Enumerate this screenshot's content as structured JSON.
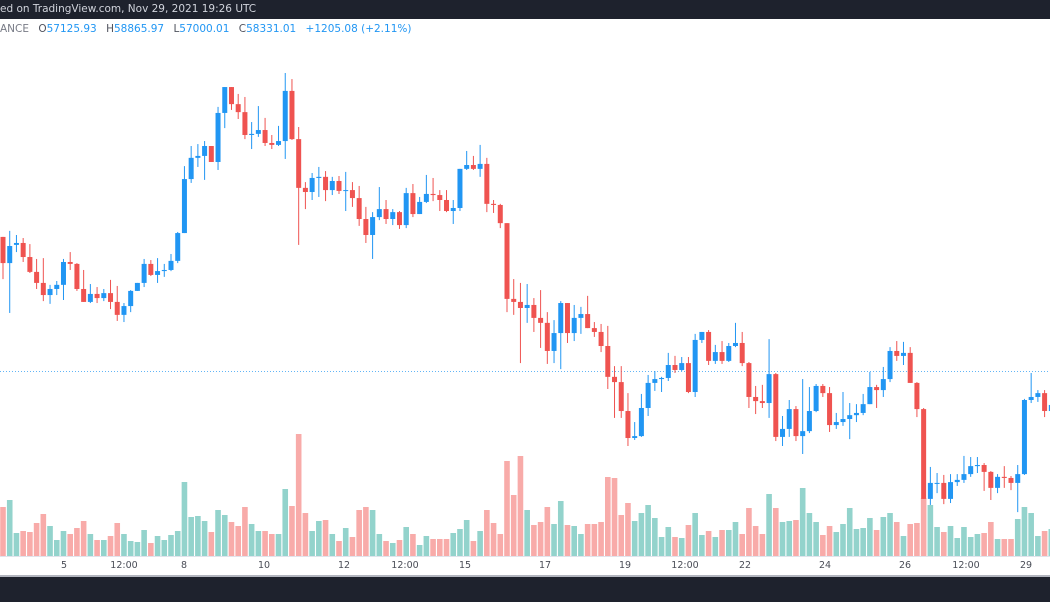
{
  "header": {
    "published_text": "ed on TradingView.com, Nov 29, 2021 19:26 UTC"
  },
  "legend": {
    "symbol_fragment": "ANCE",
    "open_label": "O",
    "open": "57125.93",
    "high_label": "H",
    "high": "58865.97",
    "low_label": "L",
    "low": "57000.01",
    "close_label": "C",
    "close": "58331.01",
    "change": "+1205.08 (+2.11%)"
  },
  "colors": {
    "up": "#2196f3",
    "down": "#ef5350",
    "volume_up": "#93d3cc",
    "volume_down": "#f8aba9",
    "last_price_line": "#2196f3",
    "bar_background": "#1e222d"
  },
  "x_axis": {
    "labels": [
      "5",
      "12:00",
      "8",
      "10",
      "12",
      "12:00",
      "15",
      "17",
      "19",
      "12:00",
      "22",
      "24",
      "26",
      "12:00",
      "29"
    ]
  },
  "chart_data": {
    "type": "candlestick",
    "interval": "4h",
    "last_price": 58331.01,
    "x_tick_labels": [
      "5",
      "12:00",
      "8",
      "10",
      "12",
      "12:00",
      "15",
      "17",
      "19",
      "12:00",
      "22",
      "24",
      "26",
      "12:00",
      "29"
    ],
    "ohlc": [
      [
        63200,
        63200,
        61670,
        62250
      ],
      [
        62250,
        63420,
        60440,
        62870
      ],
      [
        62910,
        63270,
        62650,
        62980
      ],
      [
        62980,
        63160,
        62290,
        62470
      ],
      [
        62470,
        62940,
        61890,
        61930
      ],
      [
        61930,
        62400,
        61310,
        61530
      ],
      [
        61530,
        62430,
        60870,
        61090
      ],
      [
        61090,
        61460,
        60770,
        61310
      ],
      [
        61310,
        61600,
        61090,
        61460
      ],
      [
        61460,
        62400,
        60910,
        62290
      ],
      [
        62290,
        62650,
        62000,
        62220
      ],
      [
        62220,
        62250,
        61240,
        61310
      ],
      [
        61310,
        62000,
        60840,
        60840
      ],
      [
        60840,
        61490,
        60800,
        61130
      ],
      [
        61130,
        61380,
        60800,
        60980
      ],
      [
        60980,
        61310,
        60870,
        61160
      ],
      [
        61160,
        61640,
        60580,
        60840
      ],
      [
        60840,
        61420,
        60150,
        60370
      ],
      [
        60370,
        60800,
        60110,
        60690
      ],
      [
        60690,
        61270,
        60470,
        61240
      ],
      [
        61240,
        61530,
        61240,
        61530
      ],
      [
        61530,
        62400,
        61380,
        62220
      ],
      [
        62220,
        62360,
        61780,
        61820
      ],
      [
        61820,
        62430,
        61530,
        61960
      ],
      [
        61960,
        62220,
        61750,
        62000
      ],
      [
        62000,
        62580,
        61960,
        62330
      ],
      [
        62330,
        63380,
        62250,
        63340
      ],
      [
        63340,
        65770,
        63340,
        65300
      ],
      [
        65300,
        66500,
        65160,
        66070
      ],
      [
        66070,
        66570,
        65740,
        66140
      ],
      [
        66140,
        66680,
        65270,
        66500
      ],
      [
        66500,
        66500,
        65920,
        65920
      ],
      [
        65920,
        67920,
        65630,
        67700
      ],
      [
        67700,
        68640,
        67150,
        68640
      ],
      [
        68640,
        68640,
        67810,
        68020
      ],
      [
        68020,
        68390,
        67480,
        67730
      ],
      [
        67730,
        68280,
        66750,
        66900
      ],
      [
        66900,
        67370,
        66390,
        66940
      ],
      [
        66940,
        67950,
        66830,
        67080
      ],
      [
        67080,
        67520,
        66500,
        66610
      ],
      [
        66610,
        66900,
        66390,
        66540
      ],
      [
        66540,
        67230,
        66500,
        66680
      ],
      [
        66680,
        69150,
        66030,
        68500
      ],
      [
        68500,
        68930,
        66720,
        66750
      ],
      [
        66750,
        67190,
        62910,
        64980
      ],
      [
        64980,
        65190,
        64210,
        64830
      ],
      [
        64830,
        65520,
        64540,
        65340
      ],
      [
        65340,
        65740,
        64650,
        65380
      ],
      [
        65380,
        65590,
        64500,
        64900
      ],
      [
        64900,
        65380,
        64720,
        65230
      ],
      [
        65230,
        65410,
        64760,
        64870
      ],
      [
        64870,
        65560,
        64140,
        64900
      ],
      [
        64900,
        65190,
        64290,
        64610
      ],
      [
        64610,
        65050,
        63600,
        63850
      ],
      [
        63850,
        64290,
        62980,
        63270
      ],
      [
        63270,
        64100,
        62400,
        63920
      ],
      [
        63920,
        65010,
        63810,
        64210
      ],
      [
        64210,
        64540,
        63670,
        63850
      ],
      [
        63850,
        64210,
        63630,
        64100
      ],
      [
        64100,
        64140,
        63490,
        63630
      ],
      [
        63630,
        64980,
        63520,
        64790
      ],
      [
        64790,
        65120,
        63920,
        64030
      ],
      [
        64030,
        64650,
        64030,
        64470
      ],
      [
        64470,
        65450,
        64430,
        64760
      ],
      [
        64760,
        65340,
        64500,
        64720
      ],
      [
        64720,
        64900,
        64140,
        64540
      ],
      [
        64540,
        64900,
        64100,
        64140
      ],
      [
        64140,
        64540,
        63670,
        64250
      ],
      [
        64250,
        65670,
        64140,
        65670
      ],
      [
        65670,
        66320,
        65630,
        65810
      ],
      [
        65810,
        66140,
        65630,
        65670
      ],
      [
        65670,
        66540,
        65380,
        65850
      ],
      [
        65850,
        66070,
        64100,
        64400
      ],
      [
        64400,
        64540,
        64070,
        64360
      ],
      [
        64360,
        64400,
        63520,
        63700
      ],
      [
        63700,
        63700,
        60470,
        60950
      ],
      [
        60950,
        61670,
        60370,
        60840
      ],
      [
        60840,
        61530,
        58620,
        60620
      ],
      [
        60620,
        61490,
        60080,
        60730
      ],
      [
        60730,
        60980,
        59750,
        60260
      ],
      [
        60260,
        61270,
        59170,
        60080
      ],
      [
        60080,
        60470,
        58590,
        59060
      ],
      [
        59060,
        60180,
        58620,
        59710
      ],
      [
        59710,
        60870,
        58400,
        60800
      ],
      [
        60800,
        60800,
        59350,
        59710
      ],
      [
        59710,
        60730,
        59420,
        60260
      ],
      [
        60260,
        60660,
        59680,
        60400
      ],
      [
        60400,
        61060,
        59890,
        59890
      ],
      [
        59890,
        60110,
        59570,
        59750
      ],
      [
        59750,
        60040,
        59020,
        59240
      ],
      [
        59240,
        59970,
        57680,
        58120
      ],
      [
        58120,
        58510,
        56630,
        57930
      ],
      [
        57930,
        58510,
        56630,
        56880
      ],
      [
        56880,
        57530,
        55610,
        55900
      ],
      [
        55900,
        56480,
        55830,
        55970
      ],
      [
        55970,
        57500,
        55940,
        56990
      ],
      [
        56990,
        58190,
        56700,
        57900
      ],
      [
        57900,
        58330,
        57610,
        58040
      ],
      [
        58040,
        58120,
        57570,
        58080
      ],
      [
        58080,
        58990,
        57970,
        58550
      ],
      [
        58550,
        58880,
        58260,
        58370
      ],
      [
        58370,
        58840,
        58330,
        58620
      ],
      [
        58620,
        58840,
        57530,
        57570
      ],
      [
        57570,
        59680,
        57390,
        59460
      ],
      [
        59460,
        59750,
        59350,
        59750
      ],
      [
        59750,
        59820,
        58550,
        58700
      ],
      [
        58700,
        59280,
        58590,
        59020
      ],
      [
        59020,
        59420,
        58590,
        58700
      ],
      [
        58700,
        59350,
        58660,
        59240
      ],
      [
        59240,
        60080,
        59200,
        59350
      ],
      [
        59350,
        59750,
        58510,
        58620
      ],
      [
        58620,
        58660,
        56990,
        57390
      ],
      [
        57390,
        57790,
        56770,
        57240
      ],
      [
        57240,
        57830,
        56990,
        57170
      ],
      [
        57170,
        59490,
        56630,
        58220
      ],
      [
        58220,
        58260,
        55790,
        55940
      ],
      [
        55940,
        56700,
        55610,
        56230
      ],
      [
        56230,
        57280,
        55940,
        56950
      ],
      [
        56950,
        57060,
        55790,
        55970
      ],
      [
        55970,
        58040,
        55320,
        56150
      ],
      [
        56150,
        57750,
        56080,
        56880
      ],
      [
        56880,
        57860,
        56840,
        57790
      ],
      [
        57790,
        57860,
        57390,
        57530
      ],
      [
        57530,
        57750,
        56120,
        56370
      ],
      [
        56370,
        56810,
        56230,
        56480
      ],
      [
        56480,
        57570,
        56340,
        56590
      ],
      [
        56590,
        57170,
        55860,
        56730
      ],
      [
        56730,
        57130,
        56480,
        56810
      ],
      [
        56810,
        57500,
        56730,
        57130
      ],
      [
        57130,
        58300,
        57130,
        57750
      ],
      [
        57750,
        57830,
        56990,
        57640
      ],
      [
        57640,
        58480,
        57390,
        58040
      ],
      [
        58040,
        59200,
        57930,
        59060
      ],
      [
        59060,
        59420,
        58700,
        58880
      ],
      [
        58880,
        59390,
        58550,
        58990
      ],
      [
        58990,
        59200,
        57900,
        57900
      ],
      [
        57900,
        57930,
        56660,
        56950
      ],
      [
        56950,
        56990,
        53690,
        53690
      ],
      [
        53690,
        54850,
        53470,
        54270
      ],
      [
        54270,
        54630,
        53900,
        54270
      ],
      [
        54270,
        54560,
        53500,
        53690
      ],
      [
        53690,
        54590,
        53540,
        54300
      ],
      [
        54300,
        54590,
        54160,
        54380
      ],
      [
        54380,
        55250,
        54270,
        54590
      ],
      [
        54590,
        55210,
        54490,
        54880
      ],
      [
        54880,
        55210,
        54630,
        54920
      ],
      [
        54920,
        54990,
        53980,
        54670
      ],
      [
        54670,
        54700,
        53650,
        54090
      ],
      [
        54090,
        54590,
        53900,
        54490
      ],
      [
        54490,
        54880,
        54090,
        54450
      ],
      [
        54450,
        54520,
        54010,
        54270
      ],
      [
        54270,
        54920,
        53210,
        54590
      ],
      [
        54590,
        57320,
        54560,
        57280
      ],
      [
        57280,
        58260,
        57170,
        57390
      ],
      [
        57390,
        57640,
        57210,
        57530
      ],
      [
        57530,
        57640,
        56660,
        56880
      ],
      [
        56880,
        57350,
        56810,
        57100
      ]
    ],
    "volume_relative": [
      49,
      56,
      23,
      25,
      24,
      33,
      42,
      30,
      16,
      25,
      22,
      28,
      35,
      22,
      16,
      16,
      20,
      33,
      22,
      15,
      14,
      26,
      13,
      20,
      16,
      21,
      25,
      74,
      39,
      40,
      35,
      24,
      46,
      41,
      34,
      30,
      49,
      32,
      25,
      25,
      22,
      22,
      67,
      50,
      122,
      43,
      25,
      35,
      36,
      22,
      15,
      28,
      19,
      46,
      49,
      46,
      22,
      15,
      13,
      16,
      29,
      22,
      11,
      20,
      17,
      17,
      17,
      23,
      27,
      36,
      15,
      25,
      46,
      33,
      22,
      95,
      61,
      100,
      46,
      31,
      34,
      49,
      32,
      55,
      31,
      30,
      22,
      32,
      32,
      34,
      79,
      78,
      41,
      53,
      35,
      43,
      51,
      38,
      19,
      29,
      19,
      18,
      31,
      43,
      21,
      25,
      19,
      26,
      26,
      34,
      22,
      48,
      30,
      22,
      62,
      48,
      34,
      35,
      36,
      68,
      43,
      34,
      21,
      30,
      24,
      32,
      48,
      27,
      28,
      38,
      26,
      39,
      43,
      34,
      20,
      32,
      33,
      58,
      51,
      29,
      24,
      30,
      18,
      29,
      19,
      22,
      23,
      34,
      17,
      17,
      17,
      37,
      49,
      43,
      20,
      25,
      27
    ]
  }
}
